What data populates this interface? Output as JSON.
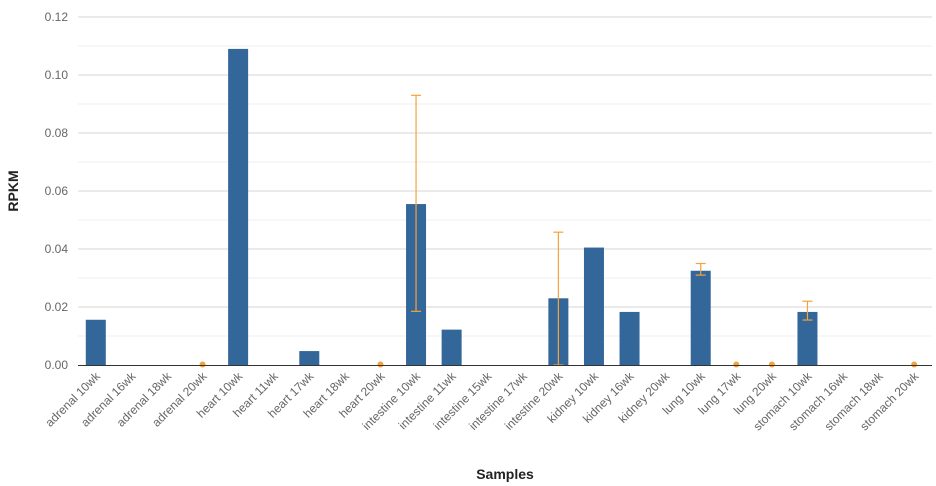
{
  "chart_data": {
    "type": "bar",
    "xlabel": "Samples",
    "ylabel": "RPKM",
    "ylim": [
      0,
      0.12
    ],
    "yticks": [
      "0.00",
      "0.02",
      "0.04",
      "0.06",
      "0.08",
      "0.10",
      "0.12"
    ],
    "grid": true,
    "bar_color": "#336699",
    "error_color": "#f5a23b",
    "categories": [
      "adrenal 10wk",
      "adrenal 16wk",
      "adrenal 18wk",
      "adrenal 20wk",
      "heart 10wk",
      "heart 11wk",
      "heart 17wk",
      "heart 18wk",
      "heart 20wk",
      "intestine 10wk",
      "intestine 11wk",
      "intestine 15wk",
      "intestine 17wk",
      "intestine 20wk",
      "kidney 10wk",
      "kidney 16wk",
      "kidney 20wk",
      "lung 10wk",
      "lung 17wk",
      "lung 20wk",
      "stomach 10wk",
      "stomach 16wk",
      "stomach 18wk",
      "stomach 20wk"
    ],
    "values": [
      0.0156,
      0,
      0,
      0,
      0.109,
      0,
      0.0048,
      0,
      0,
      0.0555,
      0.0122,
      0,
      0,
      0.023,
      0.0405,
      0.0183,
      0,
      0.0325,
      0,
      0,
      0.0183,
      0,
      0,
      0
    ],
    "error_low": [
      null,
      null,
      null,
      0,
      null,
      null,
      null,
      null,
      0,
      0.0185,
      null,
      null,
      null,
      0,
      null,
      null,
      null,
      0.031,
      0,
      0,
      0.0155,
      null,
      null,
      0
    ],
    "error_high": [
      null,
      null,
      null,
      0,
      null,
      null,
      null,
      null,
      0,
      0.093,
      null,
      null,
      null,
      0.0458,
      null,
      null,
      null,
      0.035,
      0,
      0,
      0.022,
      null,
      null,
      0
    ]
  }
}
